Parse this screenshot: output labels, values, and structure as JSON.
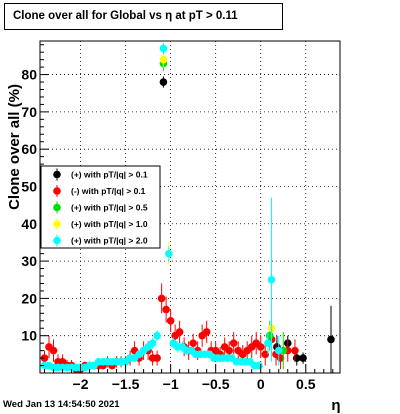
{
  "title": "Clone  over all for Global vs   η at pT > 0.11",
  "footer": "Wed Jan 13 14:54:50 2021",
  "chart_data": {
    "type": "scatter",
    "xlabel": "η",
    "ylabel": "Clone  over all (%)",
    "xlim": [
      -2.45,
      0.88
    ],
    "ylim": [
      0,
      89
    ],
    "grid": true,
    "legend_position": "middle-left",
    "xticks": [
      -2,
      -1.5,
      -1,
      -0.5,
      0,
      0.5
    ],
    "xtick_labels": [
      "−2",
      "−1.5",
      "−1",
      "−0.5",
      "0",
      "0.5"
    ],
    "yticks": [
      10,
      20,
      30,
      40,
      50,
      60,
      70,
      80
    ],
    "ytick_labels": [
      "10",
      "20",
      "30",
      "40",
      "50",
      "60",
      "70",
      "80"
    ],
    "series": [
      {
        "name": "(+) with pT/|q| > 0.1",
        "color": "#000000",
        "x": [
          -1.08,
          0.18,
          0.3,
          0.4,
          0.47,
          0.78
        ],
        "y": [
          78,
          7,
          8,
          4,
          4,
          9
        ],
        "yerr": [
          1.5,
          3,
          2,
          2,
          1.5,
          9
        ]
      },
      {
        "name": "(-) with pT/|q| > 0.1",
        "color": "#ff0000",
        "x": [
          -2.4,
          -2.35,
          -2.3,
          -2.25,
          -2.2,
          -2.15,
          -2.1,
          -2.05,
          -2.0,
          -1.95,
          -1.9,
          -1.85,
          -1.8,
          -1.75,
          -1.7,
          -1.65,
          -1.6,
          -1.55,
          -1.5,
          -1.45,
          -1.4,
          -1.35,
          -1.3,
          -1.25,
          -1.2,
          -1.15,
          -1.1,
          -1.05,
          -1.0,
          -0.95,
          -0.9,
          -0.85,
          -0.8,
          -0.75,
          -0.7,
          -0.65,
          -0.6,
          -0.55,
          -0.5,
          -0.45,
          -0.4,
          -0.35,
          -0.3,
          -0.25,
          -0.2,
          -0.15,
          -0.1,
          -0.05,
          0.0,
          0.05,
          0.12,
          0.17,
          0.22,
          0.3,
          0.38
        ],
        "y": [
          4,
          7,
          6,
          3,
          3,
          2,
          2,
          1,
          1,
          2,
          2,
          2,
          2,
          2,
          3,
          2,
          3,
          3,
          3,
          4,
          6,
          4,
          6,
          6,
          4,
          4,
          20,
          17,
          14,
          10,
          11,
          7,
          6,
          8,
          6,
          10,
          11,
          6,
          6,
          5,
          7,
          6,
          8,
          6,
          5,
          6,
          7,
          8,
          7,
          5,
          9,
          5,
          4,
          6,
          6
        ],
        "yerr": [
          2,
          3,
          3,
          2,
          2,
          1.5,
          1.5,
          1,
          1,
          1,
          1,
          1,
          1,
          1,
          1.5,
          1,
          1.5,
          1.5,
          1.5,
          2,
          2.5,
          2,
          2.5,
          2.5,
          2,
          2,
          4,
          3.5,
          3,
          3,
          3,
          2.5,
          2.5,
          2.5,
          2.5,
          3,
          3,
          2.5,
          2.5,
          2,
          2.5,
          2.5,
          3,
          2.5,
          2.5,
          2.5,
          3,
          3,
          3,
          3,
          4,
          3,
          3,
          3,
          3
        ]
      },
      {
        "name": "(+) with pT/|q| > 0.5",
        "color": "#00dd00",
        "x": [
          -1.08,
          0.1,
          0.25
        ],
        "y": [
          83,
          10,
          6
        ],
        "yerr": [
          2,
          4,
          5
        ]
      },
      {
        "name": "(+) with pT/|q| > 1.0",
        "color": "#ffff00",
        "x": [
          -1.08,
          -1.02,
          0.12
        ],
        "y": [
          84,
          32,
          12
        ],
        "yerr": [
          2,
          3,
          5
        ]
      },
      {
        "name": "(+) with pT/|q| > 2.0",
        "color": "#00ffff",
        "x": [
          -2.4,
          -2.35,
          -2.3,
          -2.25,
          -2.2,
          -2.15,
          -2.1,
          -2.05,
          -2.0,
          -1.95,
          -1.9,
          -1.85,
          -1.8,
          -1.75,
          -1.7,
          -1.65,
          -1.6,
          -1.55,
          -1.5,
          -1.45,
          -1.4,
          -1.35,
          -1.3,
          -1.25,
          -1.2,
          -1.15,
          -1.08,
          -1.02,
          -0.97,
          -0.92,
          -0.87,
          -0.82,
          -0.77,
          -0.72,
          -0.67,
          -0.62,
          -0.57,
          -0.52,
          -0.47,
          -0.42,
          -0.37,
          -0.32,
          -0.27,
          -0.22,
          -0.17,
          -0.12,
          -0.07,
          -0.02,
          0.08,
          0.12,
          0.2
        ],
        "y": [
          2,
          2,
          1.5,
          1.5,
          1.5,
          1.5,
          1.5,
          1.5,
          1.5,
          1.5,
          2,
          2,
          3,
          3,
          3,
          3,
          3,
          3,
          3,
          4,
          4,
          5,
          6,
          7,
          8,
          10,
          87,
          32,
          8,
          7,
          7,
          6,
          6,
          5,
          5,
          5,
          5,
          4,
          4,
          4,
          4,
          4,
          3,
          3,
          3,
          3,
          2,
          2,
          8,
          25,
          6
        ],
        "yerr": [
          0.5,
          0.5,
          0.5,
          0.5,
          0.5,
          0.5,
          0.5,
          0.5,
          0.5,
          0.5,
          0.7,
          0.7,
          0.8,
          0.8,
          0.8,
          0.8,
          0.8,
          0.8,
          0.8,
          1,
          1,
          1,
          1.2,
          1.2,
          1.5,
          1.5,
          1.5,
          2,
          1.5,
          1.5,
          1.5,
          1.2,
          1.2,
          1,
          1,
          1,
          1,
          1,
          1,
          1,
          1,
          1,
          1,
          1,
          1,
          1,
          1,
          1,
          3,
          22,
          4
        ]
      }
    ]
  }
}
